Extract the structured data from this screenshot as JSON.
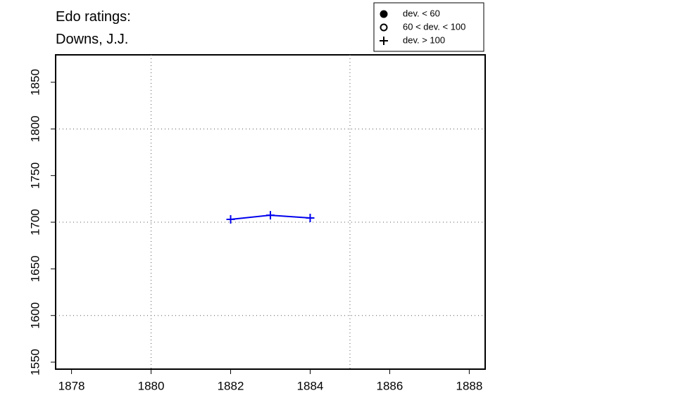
{
  "chart_data": {
    "type": "line",
    "title": [
      "Edo ratings:",
      "Downs, J.J."
    ],
    "x": [
      1882,
      1883,
      1884
    ],
    "series": [
      {
        "color": "#0000ee",
        "marker": "plus",
        "values": [
          1703,
          1707.5,
          1704.5
        ]
      }
    ],
    "xlim": [
      1877.6,
      1888.4
    ],
    "xticks": [
      1878,
      1880,
      1882,
      1884,
      1886,
      1888
    ],
    "ylim": [
      1542.5,
      1879.4
    ],
    "yticks": [
      1550,
      1600,
      1650,
      1700,
      1750,
      1800,
      1850
    ],
    "xgrid": [
      1880,
      1885
    ],
    "ygrid": [
      1600,
      1700,
      1800
    ],
    "legend": [
      {
        "label": "dev. < 60",
        "symbol": "filled-circle"
      },
      {
        "label": "60 < dev. < 100",
        "symbol": "open-circle"
      },
      {
        "label": "dev. > 100",
        "symbol": "plus"
      }
    ]
  }
}
